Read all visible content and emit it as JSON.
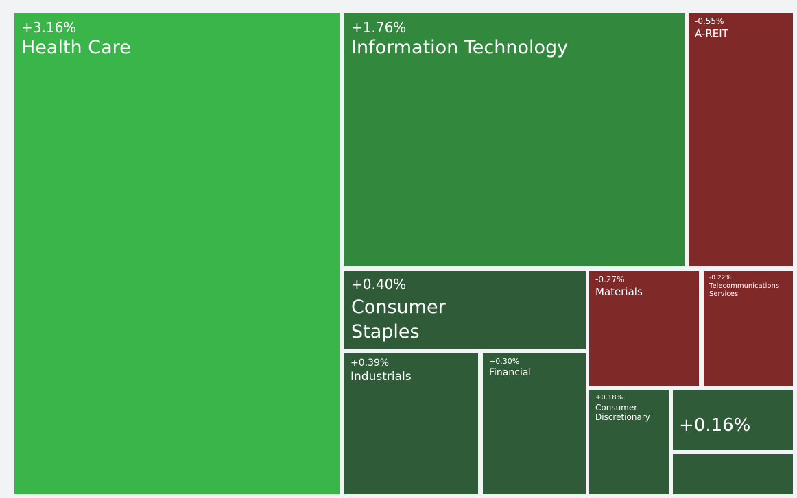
{
  "chart_data": {
    "type": "treemap",
    "title": "",
    "items": [
      {
        "name": "Health Care",
        "change": "+3.16%",
        "value": 3.16,
        "color": "#3ab54a"
      },
      {
        "name": "Information Technology",
        "change": "+1.76%",
        "value": 1.76,
        "color": "#32893e"
      },
      {
        "name": "A-REIT",
        "change": "-0.55%",
        "value": -0.55,
        "color": "#7f2a28"
      },
      {
        "name": "Consumer Staples",
        "change": "+0.40%",
        "value": 0.4,
        "color": "#305b38"
      },
      {
        "name": "Industrials",
        "change": "+0.39%",
        "value": 0.39,
        "color": "#305b38"
      },
      {
        "name": "Financial",
        "change": "+0.30%",
        "value": 0.3,
        "color": "#305b38"
      },
      {
        "name": "Materials",
        "change": "-0.27%",
        "value": -0.27,
        "color": "#7f2a28"
      },
      {
        "name": "Telecommunications Services",
        "change": "-0.22%",
        "value": -0.22,
        "color": "#7f2a28"
      },
      {
        "name": "Consumer Discretionary",
        "change": "+0.18%",
        "value": 0.18,
        "color": "#305b38"
      },
      {
        "name": "",
        "change": "+0.16%",
        "value": 0.16,
        "color": "#305b38"
      },
      {
        "name": "",
        "change": "",
        "value": null,
        "color": "#305b38"
      }
    ]
  }
}
